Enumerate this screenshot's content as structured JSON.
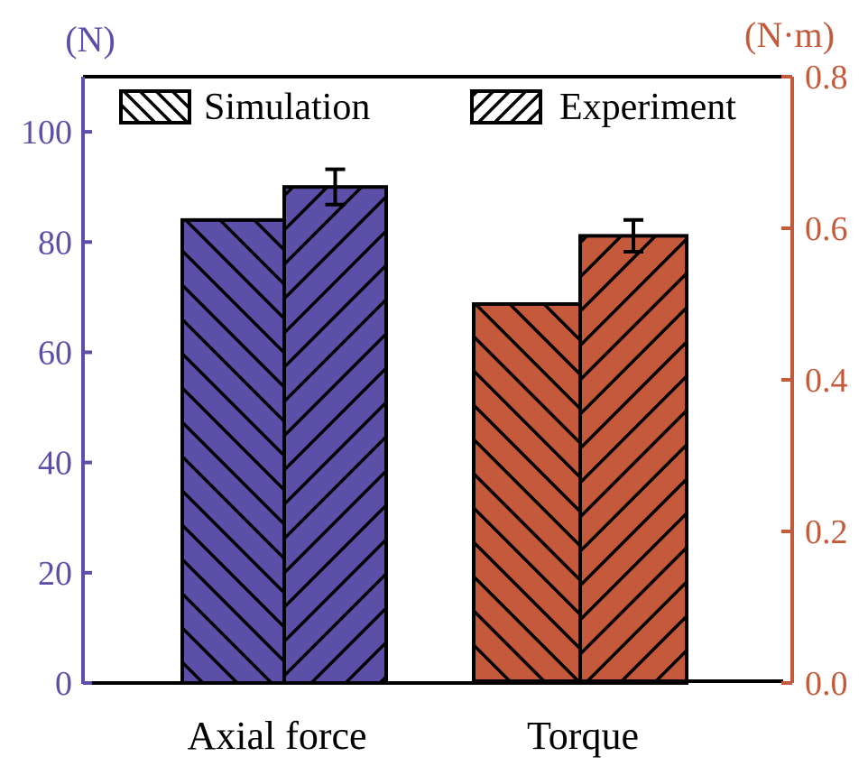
{
  "chart_data": {
    "type": "bar",
    "title": "",
    "categories": [
      "Axial force",
      "Torque"
    ],
    "series": [
      {
        "name": "Simulation",
        "pattern": "backslash-hatch",
        "values": [
          84,
          0.5
        ],
        "errors": [
          null,
          null
        ]
      },
      {
        "name": "Experiment",
        "pattern": "slash-hatch",
        "values": [
          90,
          0.59
        ],
        "errors": [
          3.2,
          0.021
        ]
      }
    ],
    "category_axis": [
      "left",
      "right"
    ],
    "category_colors": [
      "#5B4FA8",
      "#C45A3B"
    ],
    "left_axis": {
      "label": "(N)",
      "color": "#5B4FA8",
      "ylim": [
        0,
        110
      ],
      "ticks": [
        0,
        20,
        40,
        60,
        80,
        100
      ],
      "tick_labels": [
        "0",
        "20",
        "40",
        "60",
        "80",
        "100"
      ]
    },
    "right_axis": {
      "label": "(N·m)",
      "color": "#C45A3B",
      "ylim": [
        0,
        0.8
      ],
      "ticks": [
        0.0,
        0.2,
        0.4,
        0.6,
        0.8
      ],
      "tick_labels": [
        "0.0",
        "0.2",
        "0.4",
        "0.6",
        "0.8"
      ]
    },
    "legend": {
      "placement": "top",
      "entries": [
        "Simulation",
        "Experiment"
      ]
    },
    "grid": false,
    "xlabel": "",
    "ylabel": "(N)",
    "ylabel_right": "(N·m)"
  }
}
